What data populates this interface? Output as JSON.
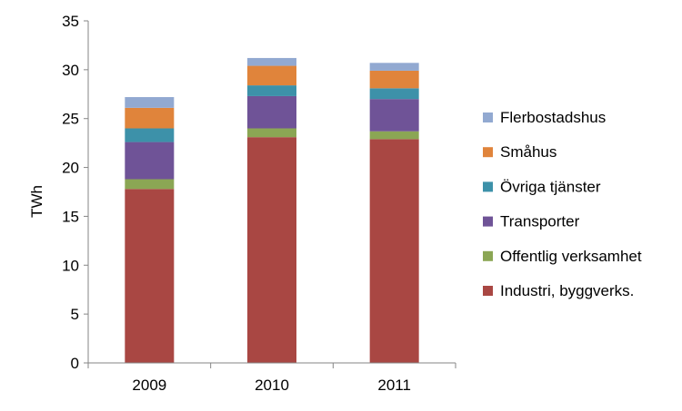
{
  "chart_data": {
    "type": "bar",
    "stacked": true,
    "categories": [
      "2009",
      "2010",
      "2011"
    ],
    "ylabel": "TWh",
    "ylim": [
      0,
      35
    ],
    "yticks": [
      "0",
      "5",
      "10",
      "15",
      "20",
      "25",
      "30",
      "35"
    ],
    "grid": false,
    "legend_position": "right",
    "series": [
      {
        "name": "Industri, byggverks.",
        "color": "#a94743",
        "values": [
          17.8,
          23.1,
          22.9
        ]
      },
      {
        "name": "Offentlig verksamhet",
        "color": "#8ba654",
        "values": [
          1.0,
          0.9,
          0.8
        ]
      },
      {
        "name": "Transporter",
        "color": "#6f5397",
        "values": [
          3.8,
          3.3,
          3.3
        ]
      },
      {
        "name": "Övriga tjänster",
        "color": "#3d91a9",
        "values": [
          1.4,
          1.1,
          1.1
        ]
      },
      {
        "name": "Småhus",
        "color": "#e0843b",
        "values": [
          2.1,
          2.0,
          1.8
        ]
      },
      {
        "name": "Flerbostadshus",
        "color": "#92a9d1",
        "values": [
          1.1,
          0.8,
          0.8
        ]
      }
    ]
  }
}
